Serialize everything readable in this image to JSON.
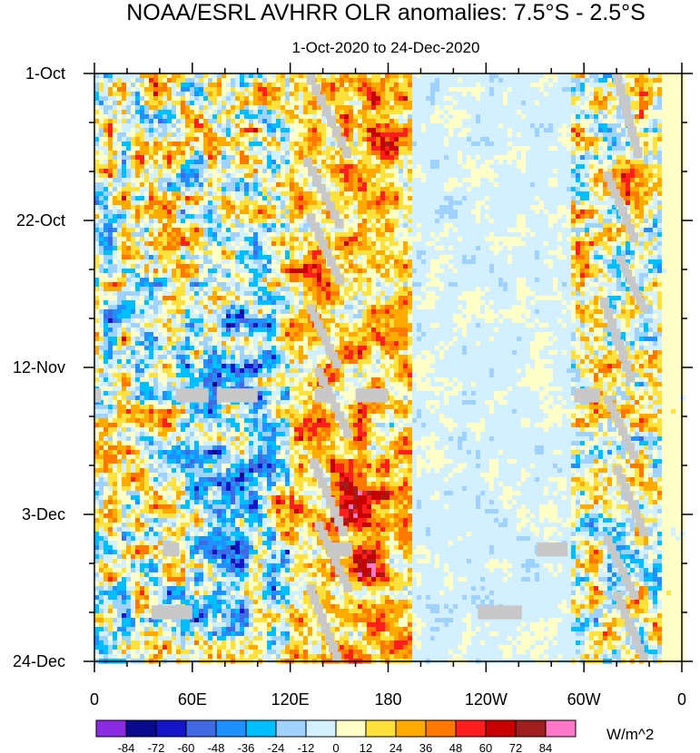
{
  "chart_data": {
    "type": "heatmap",
    "title": "NOAA/ESRL AVHRR OLR anomalies: 7.5°S - 2.5°S",
    "subtitle": "1-Oct-2020 to 24-Dec-2020",
    "xlabel": "",
    "ylabel": "",
    "x_ticks": [
      {
        "label": "0",
        "lon": 0
      },
      {
        "label": "60E",
        "lon": 60
      },
      {
        "label": "120E",
        "lon": 120
      },
      {
        "label": "180",
        "lon": 180
      },
      {
        "label": "120W",
        "lon": 240
      },
      {
        "label": "60W",
        "lon": 300
      },
      {
        "label": "0",
        "lon": 360
      }
    ],
    "xlim": [
      0,
      360
    ],
    "y_ticks": [
      {
        "label": "1-Oct",
        "day": 0
      },
      {
        "label": "22-Oct",
        "day": 21
      },
      {
        "label": "12-Nov",
        "day": 42
      },
      {
        "label": "3-Dec",
        "day": 63
      },
      {
        "label": "24-Dec",
        "day": 84
      }
    ],
    "ylim": [
      0,
      84
    ],
    "colorbar": {
      "unit": "W/m^2",
      "levels": [
        -84,
        -72,
        -60,
        -48,
        -36,
        -24,
        -12,
        0,
        12,
        24,
        36,
        48,
        60,
        72,
        84
      ],
      "colors": [
        "#8a2be2",
        "#0a0a8c",
        "#1414c8",
        "#4169e1",
        "#1e90ff",
        "#00bfff",
        "#a0d2ff",
        "#d2f0ff",
        "#ffffc8",
        "#ffe13c",
        "#ffaa00",
        "#ff7800",
        "#ff1e1e",
        "#c80000",
        "#a01e1e",
        "#ff78c8"
      ]
    },
    "missing_color": "#c8c8c8",
    "regions": [
      {
        "lon_range": [
          0,
          100
        ],
        "character": "mixed strong positive and negative anomalies"
      },
      {
        "lon_range": [
          60,
          110
        ],
        "character": "strongest negative anomalies (below -60 W/m^2), mid-November"
      },
      {
        "lon_range": [
          120,
          190
        ],
        "character": "strong positive anomalies (48 to 72 W/m^2)"
      },
      {
        "lon_range": [
          195,
          290
        ],
        "character": "weak anomalies (-12 to 12 W/m^2)"
      },
      {
        "lon_range": [
          290,
          345
        ],
        "character": "mixed anomalies near South America"
      },
      {
        "lon_range": [
          345,
          360
        ],
        "character": "weak positive anomalies (0 to 12 W/m^2)"
      }
    ]
  }
}
